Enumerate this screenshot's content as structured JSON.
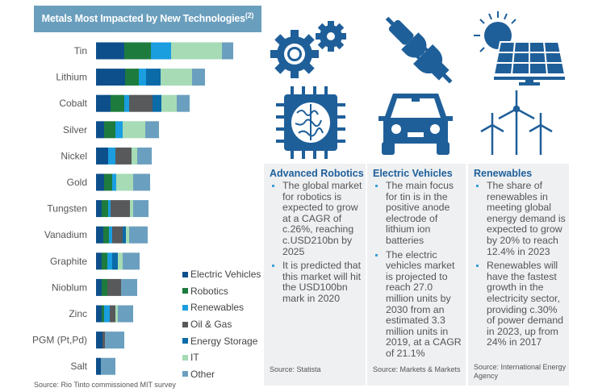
{
  "chart_data": {
    "type": "bar",
    "orientation": "horizontal",
    "stacked": true,
    "title": "Metals Most Impacted by New Technologies",
    "title_footnote": "(2)",
    "categories": [
      "Tin",
      "Lithium",
      "Cobalt",
      "Silver",
      "Nickel",
      "Gold",
      "Tungsten",
      "Vanadium",
      "Graphite",
      "Nioblum",
      "Zinc",
      "PGM (Pt,Pd)",
      "Salt"
    ],
    "series": [
      {
        "name": "Electric Vehicles",
        "color": "#0d4f8b",
        "values": [
          35,
          36,
          18,
          10,
          15,
          10,
          7,
          9,
          7,
          7,
          7,
          8,
          6
        ]
      },
      {
        "name": "Robotics",
        "color": "#1e7b3e",
        "values": [
          33,
          17,
          17,
          14,
          0,
          10,
          8,
          7,
          7,
          7,
          3,
          0,
          0
        ]
      },
      {
        "name": "Renewables",
        "color": "#1a9ee0",
        "values": [
          25,
          9,
          6,
          9,
          9,
          5,
          3,
          4,
          6,
          0,
          7,
          0,
          0
        ]
      },
      {
        "name": "Oil & Gas",
        "color": "#58595b",
        "values": [
          0,
          0,
          29,
          0,
          20,
          0,
          24,
          13,
          0,
          17,
          7,
          3,
          0
        ]
      },
      {
        "name": "Energy Storage",
        "color": "#0b6aa8",
        "values": [
          0,
          18,
          11,
          0,
          0,
          0,
          0,
          4,
          7,
          0,
          0,
          0,
          0
        ]
      },
      {
        "name": "IT",
        "color": "#a6dbb5",
        "values": [
          63,
          39,
          19,
          28,
          7,
          21,
          4,
          4,
          6,
          0,
          3,
          0,
          0
        ]
      },
      {
        "name": "Other",
        "color": "#6b9fbf",
        "values": [
          14,
          16,
          16,
          17,
          18,
          21,
          19,
          23,
          21,
          20,
          19,
          24,
          18
        ]
      }
    ],
    "legend_position": "right",
    "grid": false,
    "source": "Source: Rio Tinto commissioned MIT survey"
  },
  "icon_color": "#1f5f99",
  "panels": [
    {
      "title": "Advanced Robotics",
      "icons": [
        "gears-icon",
        "brain-chip-icon"
      ],
      "bullets": [
        "The global market for robotics is expected to grow at a CAGR of c.26%, reaching c.USD210bn by 2025",
        "It is predicted that this market will hit the USD100bn mark in 2020"
      ],
      "source": "Source: Statista"
    },
    {
      "title": "Electric Vehicles",
      "icons": [
        "plug-icon",
        "car-icon"
      ],
      "bullets": [
        "The main focus for tin is in the positive anode electrode of lithium ion batteries",
        "The electric vehicles market is projected to reach 27.0 million units by 2030 from an estimated 3.3 million units in 2019, at a CAGR of 21.1%"
      ],
      "source": "Source: Markets & Markets"
    },
    {
      "title": "Renewables",
      "icons": [
        "solar-panel-icon",
        "wind-turbine-icon"
      ],
      "bullets": [
        "The share of renewables in meeting global energy demand is expected to grow by 20% to reach 12.4% in 2023",
        "Renewables will have the fastest growth in the electricity sector, providing c.30% of power demand in 2023, up from 24% in 2017"
      ],
      "source": "Source: International Energy Agency"
    }
  ]
}
